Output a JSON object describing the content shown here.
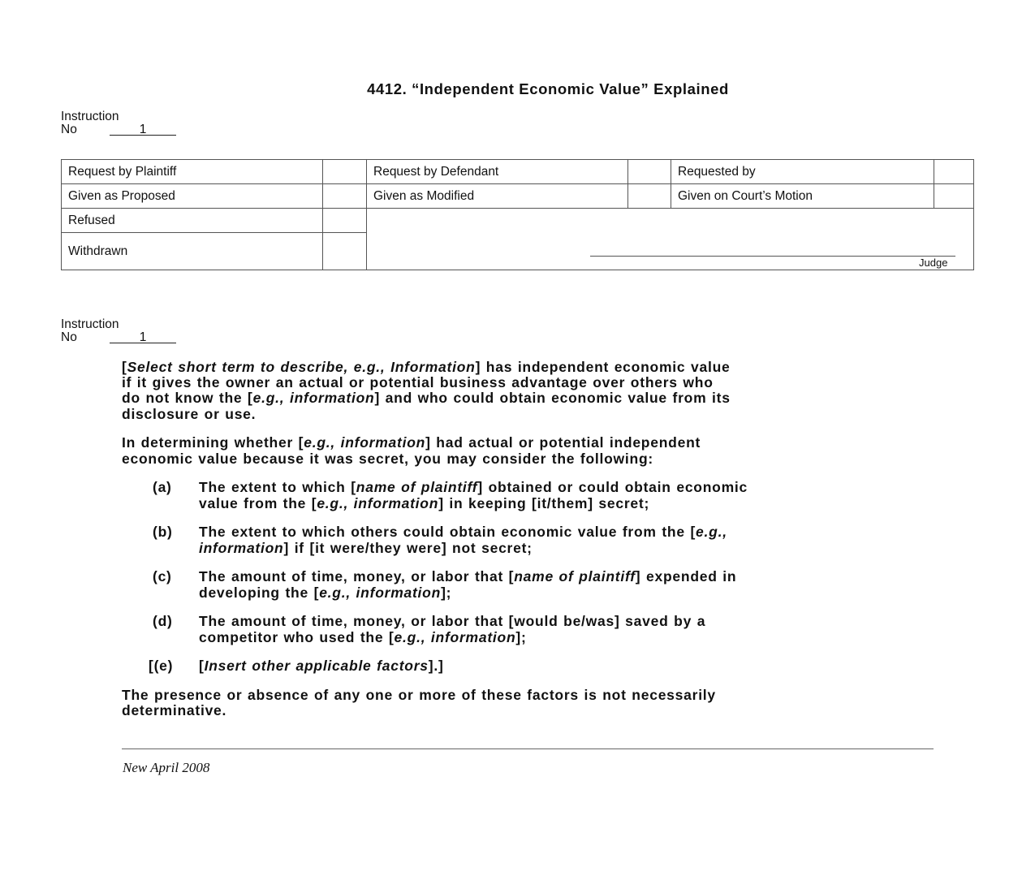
{
  "title": "4412. “Independent Economic Value” Explained",
  "instruction_blocks": [
    {
      "label": "Instruction",
      "no_label": "No",
      "number": "1"
    },
    {
      "label": "Instruction",
      "no_label": "No",
      "number": "1"
    }
  ],
  "table": {
    "request_by_plaintiff": "Request by Plaintiff",
    "request_by_defendant": "Request by Defendant",
    "requested_by": "Requested by",
    "given_as_proposed": "Given as Proposed",
    "given_as_modified": "Given as Modified",
    "given_on_courts_motion": "Given on Court’s Motion",
    "refused": "Refused",
    "withdrawn": "Withdrawn",
    "judge": "Judge"
  },
  "body": {
    "paragraphs": [
      [
        [
          {
            "t": "["
          },
          {
            "t": "Select short term to describe, e.g., Information",
            "i": true
          },
          {
            "t": "] has independent economic value"
          }
        ],
        [
          {
            "t": "if it gives the owner an actual or potential business advantage over others who"
          }
        ],
        [
          {
            "t": "do not know the ["
          },
          {
            "t": "e.g., information",
            "i": true
          },
          {
            "t": "] and who could obtain economic value from its"
          }
        ],
        [
          {
            "t": "disclosure or use."
          }
        ]
      ],
      [
        [
          {
            "t": "In determining whether ["
          },
          {
            "t": "e.g., information",
            "i": true
          },
          {
            "t": "] had actual or potential independent"
          }
        ],
        [
          {
            "t": "economic value because it was secret, you may consider the following:"
          }
        ]
      ]
    ],
    "items": [
      {
        "label": "(a)",
        "lines": [
          [
            {
              "t": "The extent to which ["
            },
            {
              "t": "name of plaintiff",
              "i": true
            },
            {
              "t": "] obtained or could obtain economic"
            }
          ],
          [
            {
              "t": "value from the ["
            },
            {
              "t": "e.g., information",
              "i": true
            },
            {
              "t": "] in keeping [it/them] secret;"
            }
          ]
        ]
      },
      {
        "label": "(b)",
        "lines": [
          [
            {
              "t": "The extent to which others could obtain economic value from the ["
            },
            {
              "t": "e.g.,",
              "i": true
            }
          ],
          [
            {
              "t": "information",
              "i": true
            },
            {
              "t": "] if [it were/they were] not secret;"
            }
          ]
        ]
      },
      {
        "label": "(c)",
        "lines": [
          [
            {
              "t": "The amount of time, money, or labor that ["
            },
            {
              "t": "name of plaintiff",
              "i": true
            },
            {
              "t": "] expended in"
            }
          ],
          [
            {
              "t": "developing the ["
            },
            {
              "t": "e.g., information",
              "i": true
            },
            {
              "t": "];"
            }
          ]
        ]
      },
      {
        "label": "(d)",
        "lines": [
          [
            {
              "t": "The amount of time, money, or labor that [would be/was] saved by a"
            }
          ],
          [
            {
              "t": "competitor who used the ["
            },
            {
              "t": "e.g., information",
              "i": true
            },
            {
              "t": "];"
            }
          ]
        ]
      },
      {
        "label": "[(e)",
        "lines": [
          [
            {
              "t": "["
            },
            {
              "t": "Insert other applicable factors",
              "i": true
            },
            {
              "t": "].]"
            }
          ]
        ]
      }
    ],
    "closing": [
      [
        {
          "t": "The presence or absence of any one or more of these factors is not necessarily"
        }
      ],
      [
        {
          "t": "determinative."
        }
      ]
    ]
  },
  "footer": "New April 2008"
}
